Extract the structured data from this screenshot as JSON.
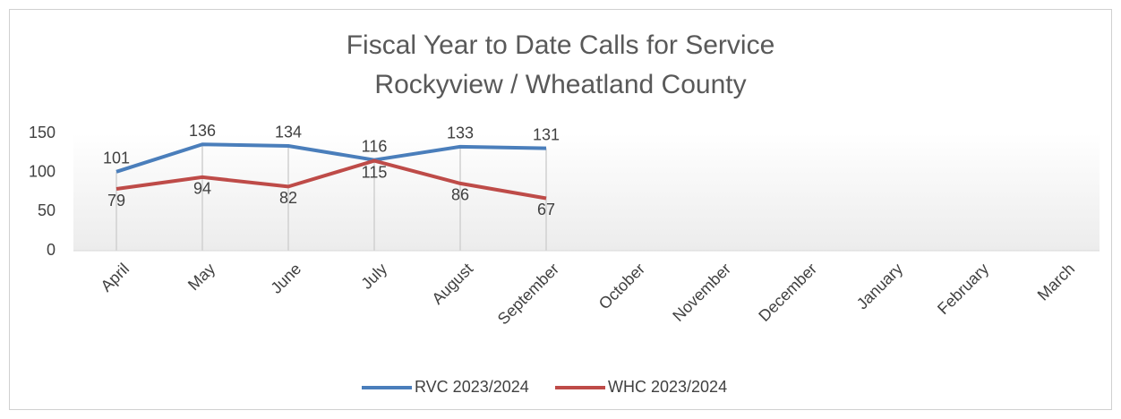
{
  "chart_data": {
    "type": "line",
    "title": [
      "Fiscal Year to Date Calls for Service",
      "Rockyview / Wheatland County"
    ],
    "categories": [
      "April",
      "May",
      "June",
      "July",
      "August",
      "September",
      "October",
      "November",
      "December",
      "January",
      "February",
      "March"
    ],
    "series": [
      {
        "name": "RVC 2023/2024",
        "color": "#4a7ebb",
        "values": [
          101,
          136,
          134,
          116,
          133,
          131,
          null,
          null,
          null,
          null,
          null,
          null
        ]
      },
      {
        "name": "WHC 2023/2024",
        "color": "#be4b48",
        "values": [
          79,
          94,
          82,
          115,
          86,
          67,
          null,
          null,
          null,
          null,
          null,
          null
        ]
      }
    ],
    "ylim": [
      0,
      150
    ],
    "yticks": [
      0,
      50,
      100,
      150
    ],
    "drop_lines": true,
    "legend": "bottom"
  }
}
